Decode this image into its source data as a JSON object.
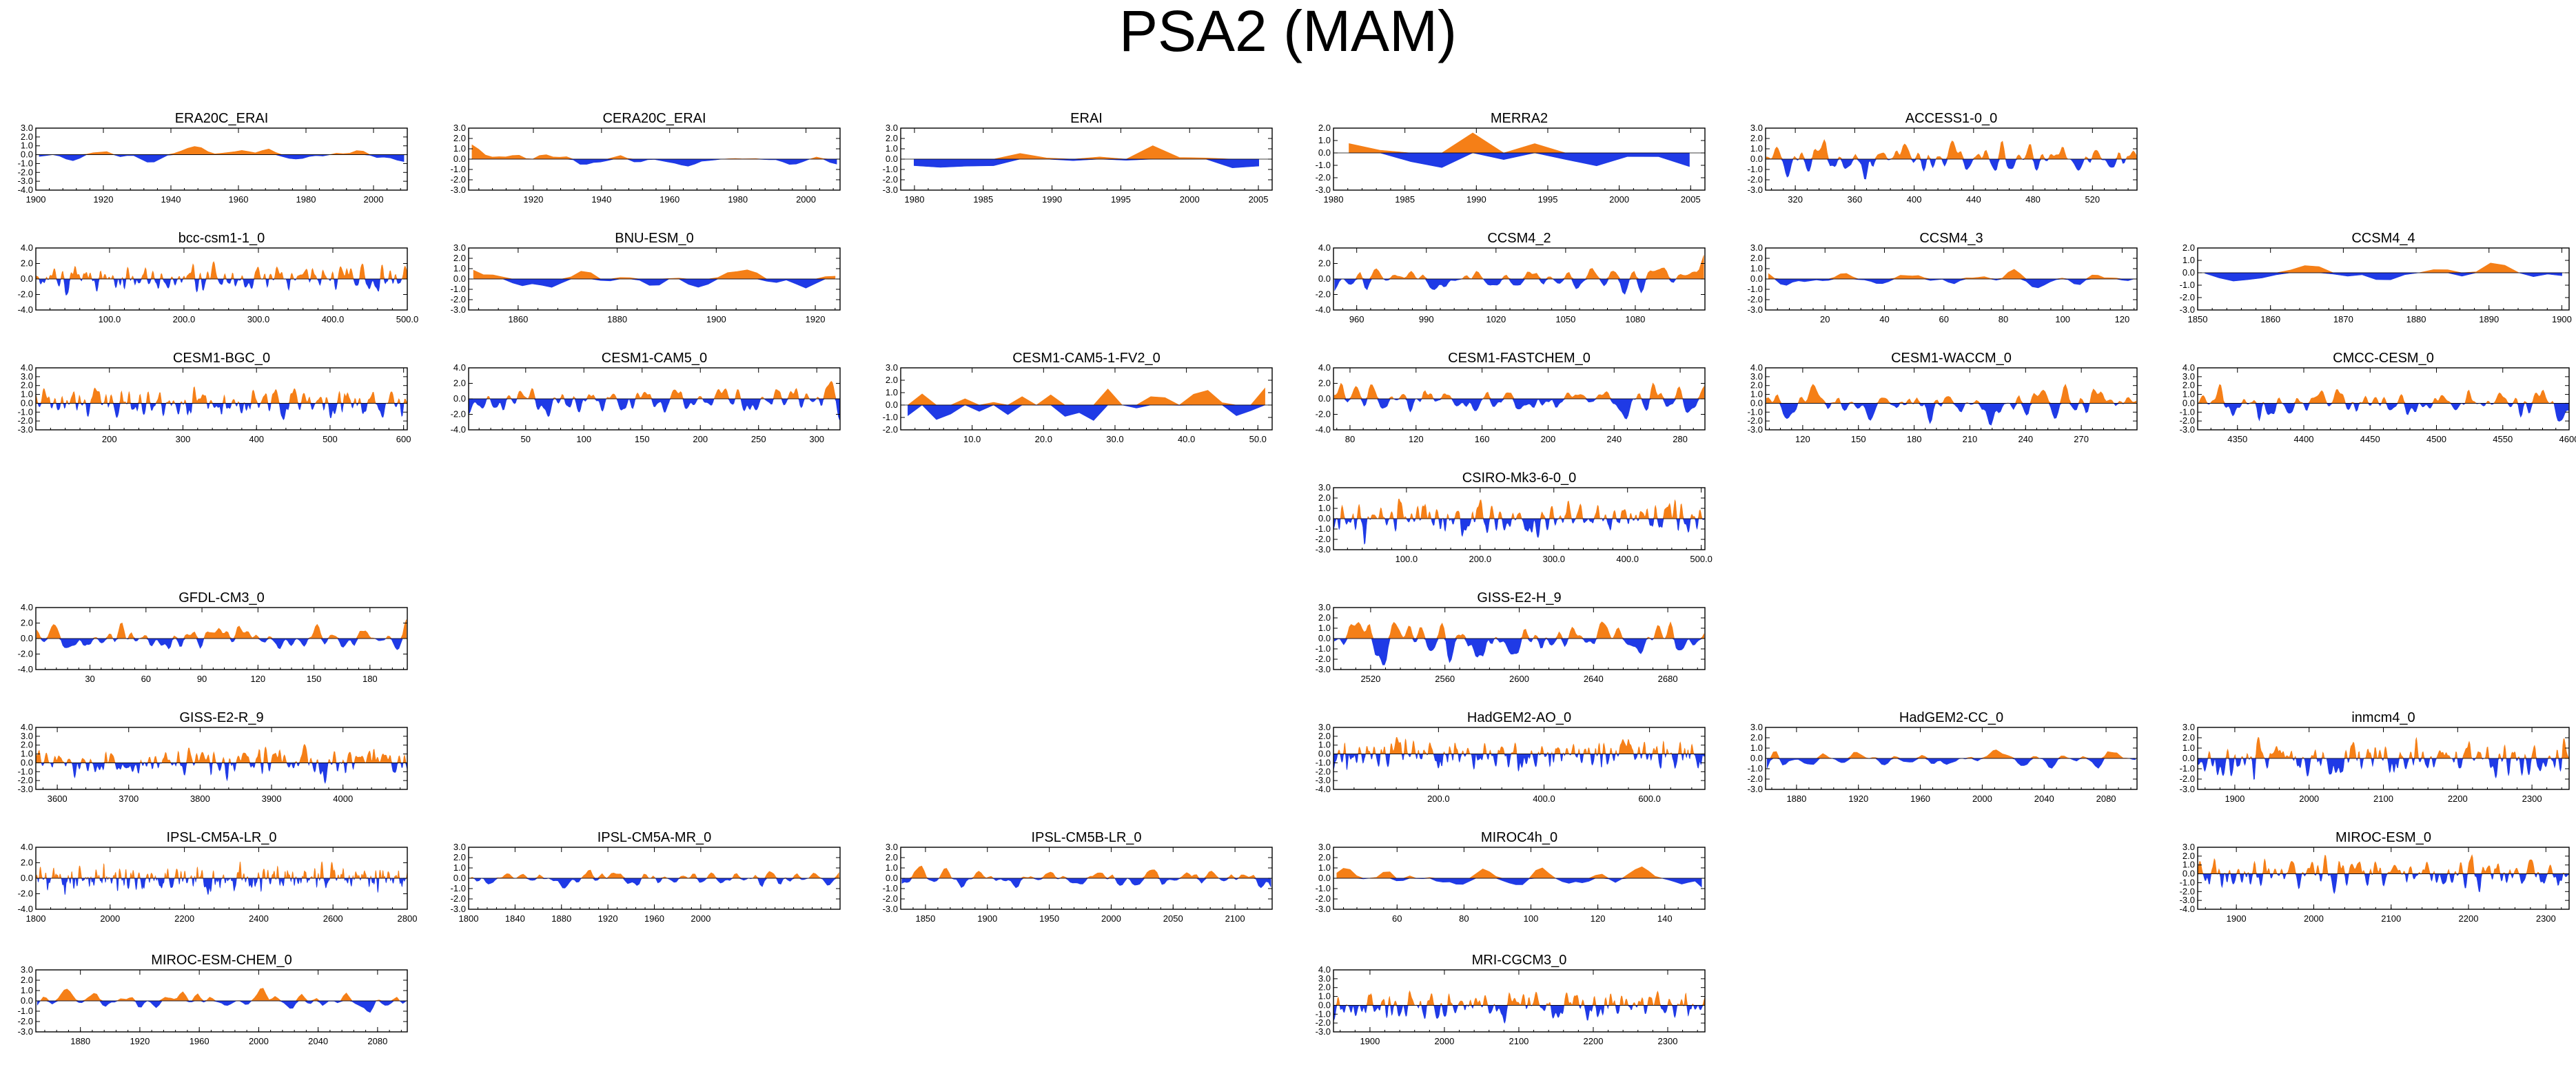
{
  "title": "PSA2 (MAM)",
  "colors": {
    "positive": "#f57f17",
    "negative": "#1f3ae6"
  },
  "chart_data": [
    {
      "type": "area",
      "title": "ERA20C_ERAI",
      "col": 0,
      "row": 0,
      "xlim": [
        1900,
        2010
      ],
      "xticks": [
        "1900",
        "1920",
        "1940",
        "1960",
        "1980",
        "2000"
      ],
      "xtickvals": [
        1900,
        1920,
        1940,
        1960,
        1980,
        2000
      ],
      "yticks": [
        "3.0",
        "2.0",
        "1.0",
        "0.0",
        "-1.0",
        "-2.0",
        "-3.0",
        "-4.0"
      ],
      "ylim": [
        -4,
        3
      ],
      "n": 55,
      "smooth": 2,
      "seed": 1
    },
    {
      "type": "area",
      "title": "CERA20C_ERAI",
      "col": 1,
      "row": 0,
      "xlim": [
        1901,
        2010
      ],
      "xticks": [
        "1920",
        "1940",
        "1960",
        "1980",
        "2000"
      ],
      "xtickvals": [
        1920,
        1940,
        1960,
        1980,
        2000
      ],
      "yticks": [
        "3.0",
        "2.0",
        "1.0",
        "0.0",
        "-1.0",
        "-2.0",
        "-3.0"
      ],
      "ylim": [
        -3,
        3
      ],
      "n": 55,
      "smooth": 2,
      "seed": 2
    },
    {
      "type": "area",
      "title": "ERAI",
      "col": 2,
      "row": 0,
      "xlim": [
        1979,
        2006
      ],
      "xticks": [
        "1980",
        "1985",
        "1990",
        "1995",
        "2000",
        "2005"
      ],
      "xtickvals": [
        1980,
        1985,
        1990,
        1995,
        2000,
        2005
      ],
      "yticks": [
        "3.0",
        "2.0",
        "1.0",
        "0.0",
        "-1.0",
        "-2.0",
        "-3.0"
      ],
      "ylim": [
        -3,
        3
      ],
      "n": 14,
      "smooth": 0,
      "seed": 3
    },
    {
      "type": "area",
      "title": "MERRA2",
      "col": 3,
      "row": 0,
      "xlim": [
        1980,
        2006
      ],
      "xticks": [
        "1980",
        "1985",
        "1990",
        "1995",
        "2000",
        "2005"
      ],
      "xtickvals": [
        1980,
        1985,
        1990,
        1995,
        2000,
        2005
      ],
      "yticks": [
        "2.0",
        "1.0",
        "0.0",
        "-1.0",
        "-2.0",
        "-3.0"
      ],
      "ylim": [
        -3,
        2
      ],
      "n": 12,
      "smooth": 0,
      "seed": 4
    },
    {
      "type": "area",
      "title": "ACCESS1-0_0",
      "col": 4,
      "row": 0,
      "xlim": [
        300,
        550
      ],
      "xticks": [
        "320",
        "360",
        "400",
        "440",
        "480",
        "520"
      ],
      "xtickvals": [
        320,
        360,
        400,
        440,
        480,
        520
      ],
      "yticks": [
        "3.0",
        "2.0",
        "1.0",
        "0.0",
        "-1.0",
        "-2.0",
        "-3.0"
      ],
      "ylim": [
        -3,
        3
      ],
      "n": 250,
      "smooth": 4,
      "seed": 5
    },
    {
      "type": "area",
      "title": "bcc-csm1-1_0",
      "col": 0,
      "row": 1,
      "xlim": [
        1,
        500
      ],
      "xticks": [
        "100.0",
        "200.0",
        "300.0",
        "400.0",
        "500.0"
      ],
      "xtickvals": [
        100,
        200,
        300,
        400,
        500
      ],
      "yticks": [
        "4.0",
        "2.0",
        "0.0",
        "-2.0",
        "-4.0"
      ],
      "ylim": [
        -4,
        4
      ],
      "n": 500,
      "smooth": 4,
      "seed": 6
    },
    {
      "type": "area",
      "title": "BNU-ESM_0",
      "col": 1,
      "row": 1,
      "xlim": [
        1850,
        1925
      ],
      "xticks": [
        "1860",
        "1880",
        "1900",
        "1920"
      ],
      "xtickvals": [
        1860,
        1880,
        1900,
        1920
      ],
      "yticks": [
        "3.0",
        "2.0",
        "1.0",
        "0.0",
        "-1.0",
        "-2.0",
        "-3.0"
      ],
      "ylim": [
        -3,
        3
      ],
      "n": 38,
      "smooth": 1,
      "seed": 7
    },
    {
      "type": "area",
      "title": "CCSM4_2",
      "col": 3,
      "row": 1,
      "xlim": [
        950,
        1110
      ],
      "xticks": [
        "960",
        "990",
        "1020",
        "1050",
        "1080"
      ],
      "xtickvals": [
        960,
        990,
        1020,
        1050,
        1080
      ],
      "yticks": [
        "4.0",
        "2.0",
        "0.0",
        "-2.0",
        "-4.0"
      ],
      "ylim": [
        -4,
        4
      ],
      "n": 160,
      "smooth": 3,
      "seed": 8
    },
    {
      "type": "area",
      "title": "CCSM4_3",
      "col": 4,
      "row": 1,
      "xlim": [
        0,
        125
      ],
      "xticks": [
        "20",
        "40",
        "60",
        "80",
        "100",
        "120"
      ],
      "xtickvals": [
        20,
        40,
        60,
        80,
        100,
        120
      ],
      "yticks": [
        "3.0",
        "2.0",
        "1.0",
        "0.0",
        "-1.0",
        "-2.0",
        "-3.0"
      ],
      "ylim": [
        -3,
        3
      ],
      "n": 62,
      "smooth": 2,
      "seed": 9
    },
    {
      "type": "area",
      "title": "CCSM4_4",
      "col": 5,
      "row": 1,
      "xlim": [
        1850,
        1901
      ],
      "xticks": [
        "1850",
        "1860",
        "1870",
        "1880",
        "1890",
        "1900"
      ],
      "xtickvals": [
        1850,
        1860,
        1870,
        1880,
        1890,
        1900
      ],
      "yticks": [
        "2.0",
        "1.0",
        "0.0",
        "-1.0",
        "-2.0",
        "-3.0"
      ],
      "ylim": [
        -3,
        2
      ],
      "n": 26,
      "smooth": 1,
      "seed": 10
    },
    {
      "type": "area",
      "title": "CESM1-BGC_0",
      "col": 0,
      "row": 2,
      "xlim": [
        100,
        605
      ],
      "xticks": [
        "200",
        "300",
        "400",
        "500",
        "600"
      ],
      "xtickvals": [
        200,
        300,
        400,
        500,
        600
      ],
      "yticks": [
        "4.0",
        "3.0",
        "2.0",
        "1.0",
        "0.0",
        "-1.0",
        "-2.0",
        "-3.0"
      ],
      "ylim": [
        -3,
        4
      ],
      "n": 500,
      "smooth": 4,
      "seed": 11
    },
    {
      "type": "area",
      "title": "CESM1-CAM5_0",
      "col": 1,
      "row": 2,
      "xlim": [
        1,
        320
      ],
      "xticks": [
        "50",
        "100",
        "150",
        "200",
        "250",
        "300"
      ],
      "xtickvals": [
        50,
        100,
        150,
        200,
        250,
        300
      ],
      "yticks": [
        "4.0",
        "2.0",
        "0.0",
        "-2.0",
        "-4.0"
      ],
      "ylim": [
        -4,
        4
      ],
      "n": 320,
      "smooth": 4,
      "seed": 12
    },
    {
      "type": "area",
      "title": "CESM1-CAM5-1-FV2_0",
      "col": 2,
      "row": 2,
      "xlim": [
        0,
        52
      ],
      "xticks": [
        "10.0",
        "20.0",
        "30.0",
        "40.0",
        "50.0"
      ],
      "xtickvals": [
        10,
        20,
        30,
        40,
        50
      ],
      "yticks": [
        "3.0",
        "2.0",
        "1.0",
        "0.0",
        "-1.0",
        "-2.0"
      ],
      "ylim": [
        -2,
        3
      ],
      "n": 26,
      "smooth": 0,
      "seed": 13
    },
    {
      "type": "area",
      "title": "CESM1-FASTCHEM_0",
      "col": 3,
      "row": 2,
      "xlim": [
        70,
        295
      ],
      "xticks": [
        "80",
        "120",
        "160",
        "200",
        "240",
        "280"
      ],
      "xtickvals": [
        80,
        120,
        160,
        200,
        240,
        280
      ],
      "yticks": [
        "4.0",
        "2.0",
        "0.0",
        "-2.0",
        "-4.0"
      ],
      "ylim": [
        -4,
        4
      ],
      "n": 225,
      "smooth": 3,
      "seed": 14
    },
    {
      "type": "area",
      "title": "CESM1-WACCM_0",
      "col": 4,
      "row": 2,
      "xlim": [
        100,
        300
      ],
      "xticks": [
        "120",
        "150",
        "180",
        "210",
        "240",
        "270"
      ],
      "xtickvals": [
        120,
        150,
        180,
        210,
        240,
        270
      ],
      "yticks": [
        "4.0",
        "3.0",
        "2.0",
        "1.0",
        "0.0",
        "-1.0",
        "-2.0",
        "-3.0"
      ],
      "ylim": [
        -3,
        4
      ],
      "n": 200,
      "smooth": 3,
      "seed": 15
    },
    {
      "type": "area",
      "title": "CMCC-CESM_0",
      "col": 5,
      "row": 2,
      "xlim": [
        4320,
        4600
      ],
      "xticks": [
        "4350",
        "4400",
        "4450",
        "4500",
        "4550",
        "4600"
      ],
      "xtickvals": [
        4350,
        4400,
        4450,
        4500,
        4550,
        4600
      ],
      "yticks": [
        "4.0",
        "3.0",
        "2.0",
        "1.0",
        "0.0",
        "-1.0",
        "-2.0",
        "-3.0"
      ],
      "ylim": [
        -3,
        4
      ],
      "n": 280,
      "smooth": 4,
      "seed": 16
    },
    {
      "type": "area",
      "title": "CSIRO-Mk3-6-0_0",
      "col": 3,
      "row": 3,
      "xlim": [
        1,
        505
      ],
      "xticks": [
        "100.0",
        "200.0",
        "300.0",
        "400.0",
        "500.0"
      ],
      "xtickvals": [
        100,
        200,
        300,
        400,
        500
      ],
      "yticks": [
        "3.0",
        "2.0",
        "1.0",
        "0.0",
        "-1.0",
        "-2.0",
        "-3.0"
      ],
      "ylim": [
        -3,
        3
      ],
      "n": 500,
      "smooth": 4,
      "seed": 17
    },
    {
      "type": "area",
      "title": "GFDL-CM3_0",
      "col": 0,
      "row": 4,
      "xlim": [
        1,
        200
      ],
      "xticks": [
        "30",
        "60",
        "90",
        "120",
        "150",
        "180"
      ],
      "xtickvals": [
        30,
        60,
        90,
        120,
        150,
        180
      ],
      "yticks": [
        "4.0",
        "2.0",
        "0.0",
        "-2.0",
        "-4.0"
      ],
      "ylim": [
        -4,
        4
      ],
      "n": 200,
      "smooth": 3,
      "seed": 18
    },
    {
      "type": "area",
      "title": "GISS-E2-H_9",
      "col": 3,
      "row": 4,
      "xlim": [
        2500,
        2700
      ],
      "xticks": [
        "2520",
        "2560",
        "2600",
        "2640",
        "2680"
      ],
      "xtickvals": [
        2520,
        2560,
        2600,
        2640,
        2680
      ],
      "yticks": [
        "3.0",
        "2.0",
        "1.0",
        "0.0",
        "-1.0",
        "-2.0",
        "-3.0"
      ],
      "ylim": [
        -3,
        3
      ],
      "n": 200,
      "smooth": 3,
      "seed": 19
    },
    {
      "type": "area",
      "title": "GISS-E2-R_9",
      "col": 0,
      "row": 5,
      "xlim": [
        3570,
        4090
      ],
      "xticks": [
        "3600",
        "3700",
        "3800",
        "3900",
        "4000"
      ],
      "xtickvals": [
        3600,
        3700,
        3800,
        3900,
        4000
      ],
      "yticks": [
        "4.0",
        "3.0",
        "2.0",
        "1.0",
        "0.0",
        "-1.0",
        "-2.0",
        "-3.0"
      ],
      "ylim": [
        -3,
        4
      ],
      "n": 500,
      "smooth": 4,
      "seed": 20
    },
    {
      "type": "area",
      "title": "HadGEM2-AO_0",
      "col": 3,
      "row": 5,
      "xlim": [
        1,
        705
      ],
      "xticks": [
        "200.0",
        "400.0",
        "600.0"
      ],
      "xtickvals": [
        200,
        400,
        600
      ],
      "yticks": [
        "3.0",
        "2.0",
        "1.0",
        "0.0",
        "-1.0",
        "-2.0",
        "-3.0",
        "-4.0"
      ],
      "ylim": [
        -4,
        3
      ],
      "n": 700,
      "smooth": 5,
      "seed": 21
    },
    {
      "type": "area",
      "title": "HadGEM2-CC_0",
      "col": 4,
      "row": 5,
      "xlim": [
        1860,
        2100
      ],
      "xticks": [
        "1880",
        "1920",
        "1960",
        "2000",
        "2040",
        "2080"
      ],
      "xtickvals": [
        1880,
        1920,
        1960,
        2000,
        2040,
        2080
      ],
      "yticks": [
        "3.0",
        "2.0",
        "1.0",
        "0.0",
        "-1.0",
        "-2.0",
        "-3.0"
      ],
      "ylim": [
        -3,
        3
      ],
      "n": 120,
      "smooth": 2,
      "seed": 22
    },
    {
      "type": "area",
      "title": "inmcm4_0",
      "col": 5,
      "row": 5,
      "xlim": [
        1850,
        2350
      ],
      "xticks": [
        "1900",
        "2000",
        "2100",
        "2200",
        "2300"
      ],
      "xtickvals": [
        1900,
        2000,
        2100,
        2200,
        2300
      ],
      "yticks": [
        "3.0",
        "2.0",
        "1.0",
        "0.0",
        "-1.0",
        "-2.0",
        "-3.0"
      ],
      "ylim": [
        -3,
        3
      ],
      "n": 500,
      "smooth": 4,
      "seed": 23
    },
    {
      "type": "area",
      "title": "IPSL-CM5A-LR_0",
      "col": 0,
      "row": 6,
      "xlim": [
        1800,
        2800
      ],
      "xticks": [
        "1800",
        "2000",
        "2200",
        "2400",
        "2600",
        "2800"
      ],
      "xtickvals": [
        1800,
        2000,
        2200,
        2400,
        2600,
        2800
      ],
      "yticks": [
        "4.0",
        "2.0",
        "0.0",
        "-2.0",
        "-4.0"
      ],
      "ylim": [
        -4,
        4
      ],
      "n": 900,
      "smooth": 5,
      "seed": 24
    },
    {
      "type": "area",
      "title": "IPSL-CM5A-MR_0",
      "col": 1,
      "row": 6,
      "xlim": [
        1800,
        2120
      ],
      "xticks": [
        "1800",
        "1840",
        "1880",
        "1920",
        "1960",
        "2000"
      ],
      "xtickvals": [
        1800,
        1840,
        1880,
        1920,
        1960,
        2000
      ],
      "yticks": [
        "3.0",
        "2.0",
        "1.0",
        "0.0",
        "-1.0",
        "-2.0",
        "-3.0"
      ],
      "ylim": [
        -3,
        3
      ],
      "n": 160,
      "smooth": 2,
      "seed": 25
    },
    {
      "type": "area",
      "title": "IPSL-CM5B-LR_0",
      "col": 2,
      "row": 6,
      "xlim": [
        1830,
        2130
      ],
      "xticks": [
        "1850",
        "1900",
        "1950",
        "2000",
        "2050",
        "2100"
      ],
      "xtickvals": [
        1850,
        1900,
        1950,
        2000,
        2050,
        2100
      ],
      "yticks": [
        "3.0",
        "2.0",
        "1.0",
        "0.0",
        "-1.0",
        "-2.0",
        "-3.0"
      ],
      "ylim": [
        -3,
        3
      ],
      "n": 150,
      "smooth": 2,
      "seed": 26
    },
    {
      "type": "area",
      "title": "MIROC4h_0",
      "col": 3,
      "row": 6,
      "xlim": [
        41,
        152
      ],
      "xticks": [
        "60",
        "80",
        "100",
        "120",
        "140"
      ],
      "xtickvals": [
        60,
        80,
        100,
        120,
        140
      ],
      "yticks": [
        "3.0",
        "2.0",
        "1.0",
        "0.0",
        "-1.0",
        "-2.0",
        "-3.0"
      ],
      "ylim": [
        -3,
        3
      ],
      "n": 56,
      "smooth": 1,
      "seed": 27
    },
    {
      "type": "area",
      "title": "MIROC-ESM_0",
      "col": 5,
      "row": 6,
      "xlim": [
        1850,
        2330
      ],
      "xticks": [
        "1900",
        "2000",
        "2100",
        "2200",
        "2300"
      ],
      "xtickvals": [
        1900,
        2000,
        2100,
        2200,
        2300
      ],
      "yticks": [
        "3.0",
        "2.0",
        "1.0",
        "0.0",
        "-1.0",
        "-2.0",
        "-3.0",
        "-4.0"
      ],
      "ylim": [
        -4,
        3
      ],
      "n": 480,
      "smooth": 4,
      "seed": 28
    },
    {
      "type": "area",
      "title": "MIROC-ESM-CHEM_0",
      "col": 0,
      "row": 7,
      "xlim": [
        1850,
        2100
      ],
      "xticks": [
        "1880",
        "1920",
        "1960",
        "2000",
        "2040",
        "2080"
      ],
      "xtickvals": [
        1880,
        1920,
        1960,
        2000,
        2040,
        2080
      ],
      "yticks": [
        "3.0",
        "2.0",
        "1.0",
        "0.0",
        "-1.0",
        "-2.0",
        "-3.0"
      ],
      "ylim": [
        -3,
        3
      ],
      "n": 125,
      "smooth": 2,
      "seed": 29
    },
    {
      "type": "area",
      "title": "MRI-CGCM3_0",
      "col": 3,
      "row": 7,
      "xlim": [
        1851,
        2350
      ],
      "xticks": [
        "1900",
        "2000",
        "2100",
        "2200",
        "2300"
      ],
      "xtickvals": [
        1900,
        2000,
        2100,
        2200,
        2300
      ],
      "yticks": [
        "4.0",
        "3.0",
        "2.0",
        "1.0",
        "0.0",
        "-1.0",
        "-2.0",
        "-3.0"
      ],
      "ylim": [
        -3,
        4
      ],
      "n": 500,
      "smooth": 4,
      "seed": 30
    }
  ]
}
